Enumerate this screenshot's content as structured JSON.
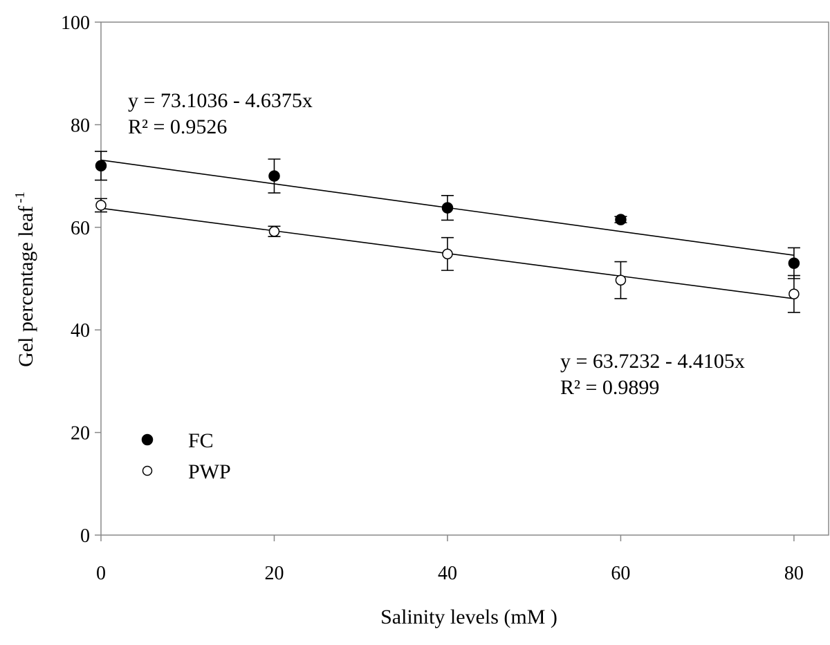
{
  "chart_data": {
    "type": "scatter",
    "xlabel": "Salinity levels (mM )",
    "ylabel": "Gel percentage leaf",
    "ylabel_sup": "-1",
    "xlim": [
      0,
      84
    ],
    "ylim": [
      0,
      100
    ],
    "x_ticks": [
      0,
      20,
      40,
      60,
      80
    ],
    "y_ticks": [
      0,
      20,
      40,
      60,
      80,
      100
    ],
    "grid": false,
    "legend_position": "bottom-left",
    "series": [
      {
        "name": "FC",
        "marker": "filled-circle",
        "color": "#000000",
        "x": [
          0,
          20,
          40,
          60,
          80
        ],
        "values": [
          72.0,
          70.0,
          63.8,
          61.5,
          53.0
        ],
        "error": [
          2.8,
          3.3,
          2.4,
          0.6,
          3.0
        ],
        "trendline": {
          "intercept": 73.1036,
          "slope_per_level": -4.6375,
          "level_step": 20
        },
        "equation": "y = 73.1036 - 4.6375x",
        "r2": "R² = 0.9526"
      },
      {
        "name": "PWP",
        "marker": "open-circle",
        "color": "#000000",
        "x": [
          0,
          20,
          40,
          60,
          80
        ],
        "values": [
          64.3,
          59.2,
          54.8,
          49.7,
          47.0
        ],
        "error": [
          1.3,
          1.0,
          3.2,
          3.6,
          3.6
        ],
        "trendline": {
          "intercept": 63.7232,
          "slope_per_level": -4.4105,
          "level_step": 20
        },
        "equation": "y = 63.7232 - 4.4105x",
        "r2": "R² = 0.9899"
      }
    ]
  }
}
